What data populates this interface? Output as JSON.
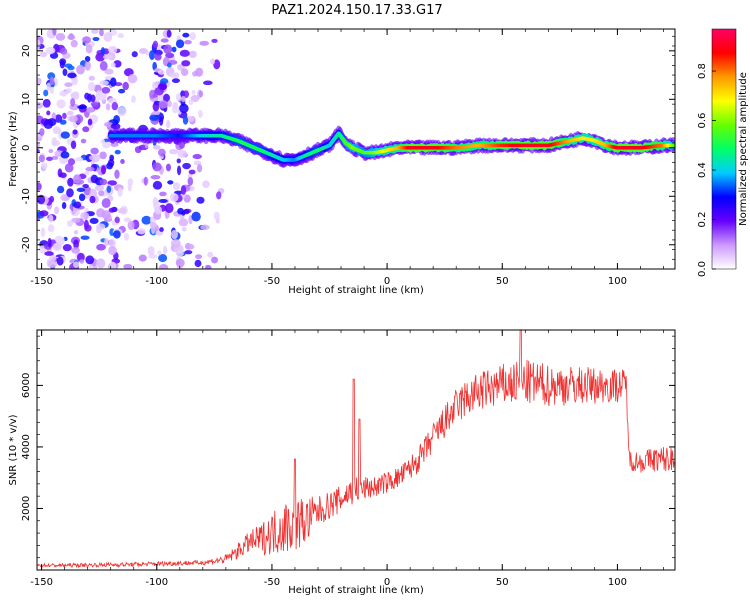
{
  "figure_title": "PAZ1.2024.150.17.33.G17",
  "chart_data": [
    {
      "type": "heatmap",
      "title": "PAZ1.2024.150.17.33.G17",
      "xlabel": "Height of straight line (km)",
      "ylabel": "Frequency (Hz)",
      "xlim": [
        -152,
        125
      ],
      "ylim": [
        -25,
        24.5
      ],
      "x_ticks": [
        "-150",
        "-100",
        "-50",
        "0",
        "50",
        "100"
      ],
      "x_tick_values": [
        -150,
        -100,
        -50,
        0,
        50,
        100
      ],
      "y_ticks": [
        "-20",
        "-10",
        "0",
        "10",
        "20"
      ],
      "y_tick_values": [
        -20,
        -10,
        0,
        10,
        20
      ],
      "colorbar": {
        "label": "Normalized spectral amplitude",
        "ticks": [
          "0.0",
          "0.2",
          "0.4",
          "0.6",
          "0.8"
        ],
        "tick_values": [
          0.0,
          0.2,
          0.4,
          0.6,
          0.8
        ],
        "range": [
          0,
          0.97
        ],
        "colormap": [
          "#ffffff",
          "#cc99ff",
          "#6600ff",
          "#0000ff",
          "#00ccff",
          "#00ff66",
          "#66ff00",
          "#ffff00",
          "#ff9900",
          "#ff0000",
          "#ff0066"
        ]
      },
      "ridge": {
        "x": [
          -120,
          -110,
          -100,
          -90,
          -80,
          -72,
          -65,
          -60,
          -55,
          -50,
          -45,
          -40,
          -35,
          -30,
          -25,
          -21,
          -18,
          -15,
          -10,
          -5,
          0,
          5,
          10,
          20,
          30,
          40,
          50,
          60,
          70,
          80,
          85,
          90,
          95,
          100,
          110,
          120,
          125
        ],
        "frequency_hz": [
          2.5,
          2.5,
          2.5,
          2.5,
          2.5,
          2.5,
          1.5,
          0.5,
          -0.5,
          -1.5,
          -2.5,
          -2.5,
          -1.5,
          -0.5,
          0.5,
          3.0,
          1.0,
          0.0,
          -1.0,
          -1.0,
          -0.5,
          0.0,
          0.0,
          0.0,
          0.0,
          0.5,
          0.5,
          0.5,
          0.5,
          1.5,
          2.0,
          1.5,
          0.5,
          0.0,
          0.0,
          0.5,
          0.5
        ],
        "amplitude": [
          0.35,
          0.35,
          0.35,
          0.3,
          0.4,
          0.45,
          0.5,
          0.5,
          0.5,
          0.45,
          0.4,
          0.35,
          0.45,
          0.5,
          0.4,
          0.45,
          0.55,
          0.6,
          0.55,
          0.6,
          0.7,
          0.75,
          0.9,
          0.9,
          0.8,
          0.75,
          0.85,
          0.9,
          0.9,
          0.75,
          0.7,
          0.7,
          0.75,
          0.9,
          0.9,
          0.8,
          0.55
        ]
      },
      "noise_region_x": [
        -152,
        -72
      ]
    },
    {
      "type": "line",
      "xlabel": "Height of straight line (km)",
      "ylabel": "SNR (10 * v/v)",
      "xlim": [
        -152,
        125
      ],
      "ylim": [
        0,
        7800
      ],
      "x_ticks": [
        "-150",
        "-100",
        "-50",
        "0",
        "50",
        "100"
      ],
      "x_tick_values": [
        -150,
        -100,
        -50,
        0,
        50,
        100
      ],
      "y_ticks": [
        "2000",
        "4000",
        "6000"
      ],
      "y_tick_values": [
        2000,
        4000,
        6000
      ],
      "series": [
        {
          "color": "#f03030",
          "x": [
            -152,
            -140,
            -130,
            -120,
            -110,
            -100,
            -90,
            -80,
            -70,
            -65,
            -60,
            -55,
            -50,
            -45,
            -40,
            -35,
            -30,
            -25,
            -20,
            -15,
            -10,
            -5,
            0,
            5,
            10,
            15,
            20,
            25,
            30,
            35,
            40,
            50,
            60,
            70,
            80,
            90,
            100,
            104,
            105,
            110,
            115,
            120,
            125
          ],
          "y": [
            150,
            150,
            160,
            170,
            180,
            200,
            220,
            240,
            350,
            600,
            900,
            1000,
            1200,
            1400,
            1500,
            1600,
            1900,
            2100,
            2300,
            2600,
            2650,
            2700,
            2850,
            3000,
            3300,
            3700,
            4300,
            4800,
            5300,
            5600,
            5800,
            6000,
            6100,
            6000,
            6000,
            6000,
            6000,
            6000,
            3600,
            3500,
            3600,
            3600,
            3600
          ],
          "noise_amplitude": [
            60,
            60,
            60,
            70,
            70,
            80,
            80,
            80,
            150,
            250,
            350,
            500,
            700,
            900,
            900,
            800,
            500,
            450,
            450,
            500,
            400,
            350,
            350,
            350,
            400,
            450,
            500,
            550,
            600,
            650,
            650,
            700,
            750,
            700,
            650,
            600,
            550,
            550,
            350,
            350,
            400,
            450,
            450
          ]
        }
      ],
      "peaks": [
        {
          "x": -14.5,
          "y": 6200
        },
        {
          "x": 58,
          "y": 7800
        },
        {
          "x": -40,
          "y": 3600
        },
        {
          "x": -12,
          "y": 4900
        }
      ]
    }
  ]
}
